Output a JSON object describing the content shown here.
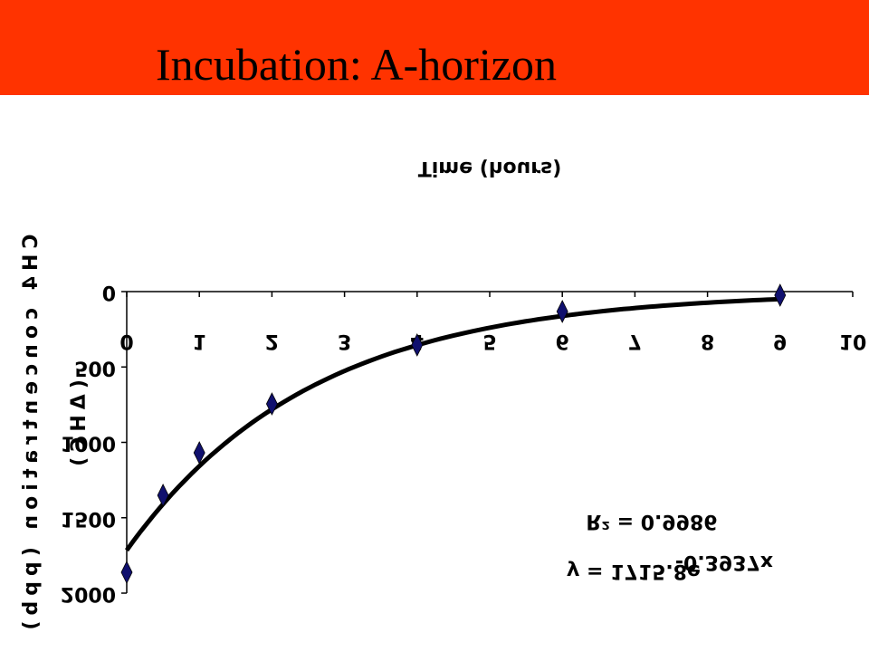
{
  "header": {
    "title": "Incubation: A-horizon"
  },
  "chart_data": {
    "type": "scatter",
    "x_label": "Time (hours)",
    "y_label": "CH4 concentration (ppb)",
    "y_label2": "(ΔHC)",
    "x": [
      0,
      0.5,
      1,
      2,
      4,
      6,
      9
    ],
    "series": [
      {
        "name": "CH4",
        "color": "#10106e",
        "values": [
          1862,
          1351,
          1069,
          745,
          354,
          132,
          24
        ]
      }
    ],
    "xlim": [
      0,
      10
    ],
    "xticks": [
      0,
      1,
      2,
      3,
      4,
      5,
      6,
      7,
      8,
      9,
      10
    ],
    "ylim": [
      0,
      2000
    ],
    "yticks": [
      0,
      500,
      1000,
      1500,
      2000
    ],
    "flipped_vertical": true,
    "trendline": {
      "a": 1715.8,
      "k": -0.3937,
      "equation": "y = 1715.8e",
      "exponent": "-0.3937x",
      "r2_label": "R² = 0.9986"
    }
  }
}
